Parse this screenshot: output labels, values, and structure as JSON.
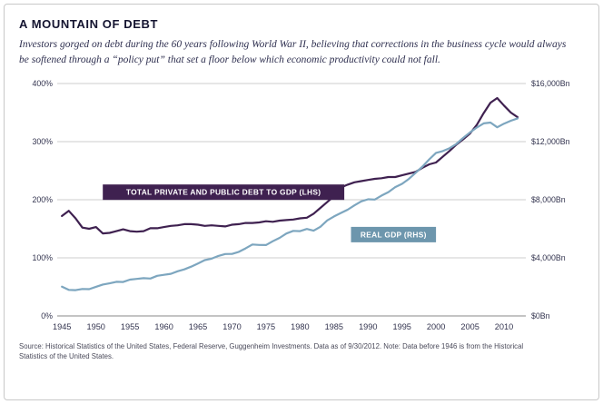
{
  "card": {
    "title": "A MOUNTAIN OF DEBT",
    "subtitle": "Investors gorged on debt during the 60 years following World War II, believing that corrections in the business cycle would always be softened through a “policy put” that set a floor below which economic productivity could not fall.",
    "source": "Source: Historical Statistics of the United States, Federal Reserve, Guggenheim Investments. Data as of 9/30/2012. Note: Data before 1946 is from the Historical Statistics of the United States."
  },
  "chart_data": {
    "type": "line",
    "title": "A MOUNTAIN OF DEBT",
    "grid": "horizontal",
    "x": [
      1945,
      1946,
      1947,
      1948,
      1949,
      1950,
      1951,
      1952,
      1953,
      1954,
      1955,
      1956,
      1957,
      1958,
      1959,
      1960,
      1961,
      1962,
      1963,
      1964,
      1965,
      1966,
      1967,
      1968,
      1969,
      1970,
      1971,
      1972,
      1973,
      1974,
      1975,
      1976,
      1977,
      1978,
      1979,
      1980,
      1981,
      1982,
      1983,
      1984,
      1985,
      1986,
      1987,
      1988,
      1989,
      1990,
      1991,
      1992,
      1993,
      1994,
      1995,
      1996,
      1997,
      1998,
      1999,
      2000,
      2001,
      2002,
      2003,
      2004,
      2005,
      2006,
      2007,
      2008,
      2009,
      2010,
      2011,
      2012
    ],
    "x_ticks": [
      1945,
      1950,
      1955,
      1960,
      1965,
      1970,
      1975,
      1980,
      1985,
      1990,
      1995,
      2000,
      2005,
      2010
    ],
    "left_axis": {
      "min": 0,
      "max": 400,
      "unit": "%",
      "ticks": [
        "0%",
        "100%",
        "200%",
        "300%",
        "400%"
      ]
    },
    "right_axis": {
      "min": 0,
      "max": 16000,
      "unit": "$Bn",
      "ticks": [
        "$0Bn",
        "$4,000Bn",
        "$8,000Bn",
        "$12,000Bn",
        "$16,000Bn"
      ]
    },
    "series": [
      {
        "name": "TOTAL PRIVATE AND PUBLIC DEBT TO GDP (LHS)",
        "axis": "left",
        "color": "#3f2150",
        "box_color": "#3f2150",
        "label": {
          "x1": 1951,
          "x2": 1986.5,
          "y": 213
        },
        "values": [
          172,
          181,
          168,
          152,
          150,
          153,
          142,
          143,
          146,
          149,
          146,
          145,
          146,
          151,
          151,
          153,
          155,
          156,
          158,
          158,
          157,
          155,
          156,
          155,
          154,
          157,
          158,
          160,
          160,
          161,
          163,
          162,
          164,
          165,
          166,
          168,
          169,
          176,
          186,
          196,
          206,
          221,
          226,
          230,
          232,
          234,
          236,
          237,
          239,
          239,
          242,
          245,
          248,
          255,
          261,
          264,
          274,
          284,
          295,
          304,
          314,
          329,
          349,
          367,
          375,
          362,
          350,
          342
        ]
      },
      {
        "name": "REAL GDP (RHS)",
        "axis": "right",
        "color": "#7da6bf",
        "box_color": "#6d96ad",
        "label": {
          "x1": 1987.5,
          "x2": 2000,
          "y": 140
        },
        "values": [
          2012,
          1792,
          1776,
          1854,
          1845,
          2006,
          2161,
          2244,
          2350,
          2340,
          2500,
          2549,
          2601,
          2578,
          2763,
          2831,
          2897,
          3072,
          3207,
          3392,
          3610,
          3845,
          3943,
          4133,
          4262,
          4270,
          4413,
          4648,
          4917,
          4890,
          4880,
          5141,
          5378,
          5678,
          5855,
          5839,
          5987,
          5871,
          6136,
          6577,
          6849,
          7087,
          7313,
          7614,
          7886,
          8034,
          8015,
          8287,
          8523,
          8871,
          9094,
          9434,
          9854,
          10284,
          10780,
          11226,
          11347,
          11553,
          11841,
          12264,
          12638,
          12976,
          13254,
          13312,
          12987,
          13240,
          13440,
          13600
        ]
      }
    ]
  }
}
